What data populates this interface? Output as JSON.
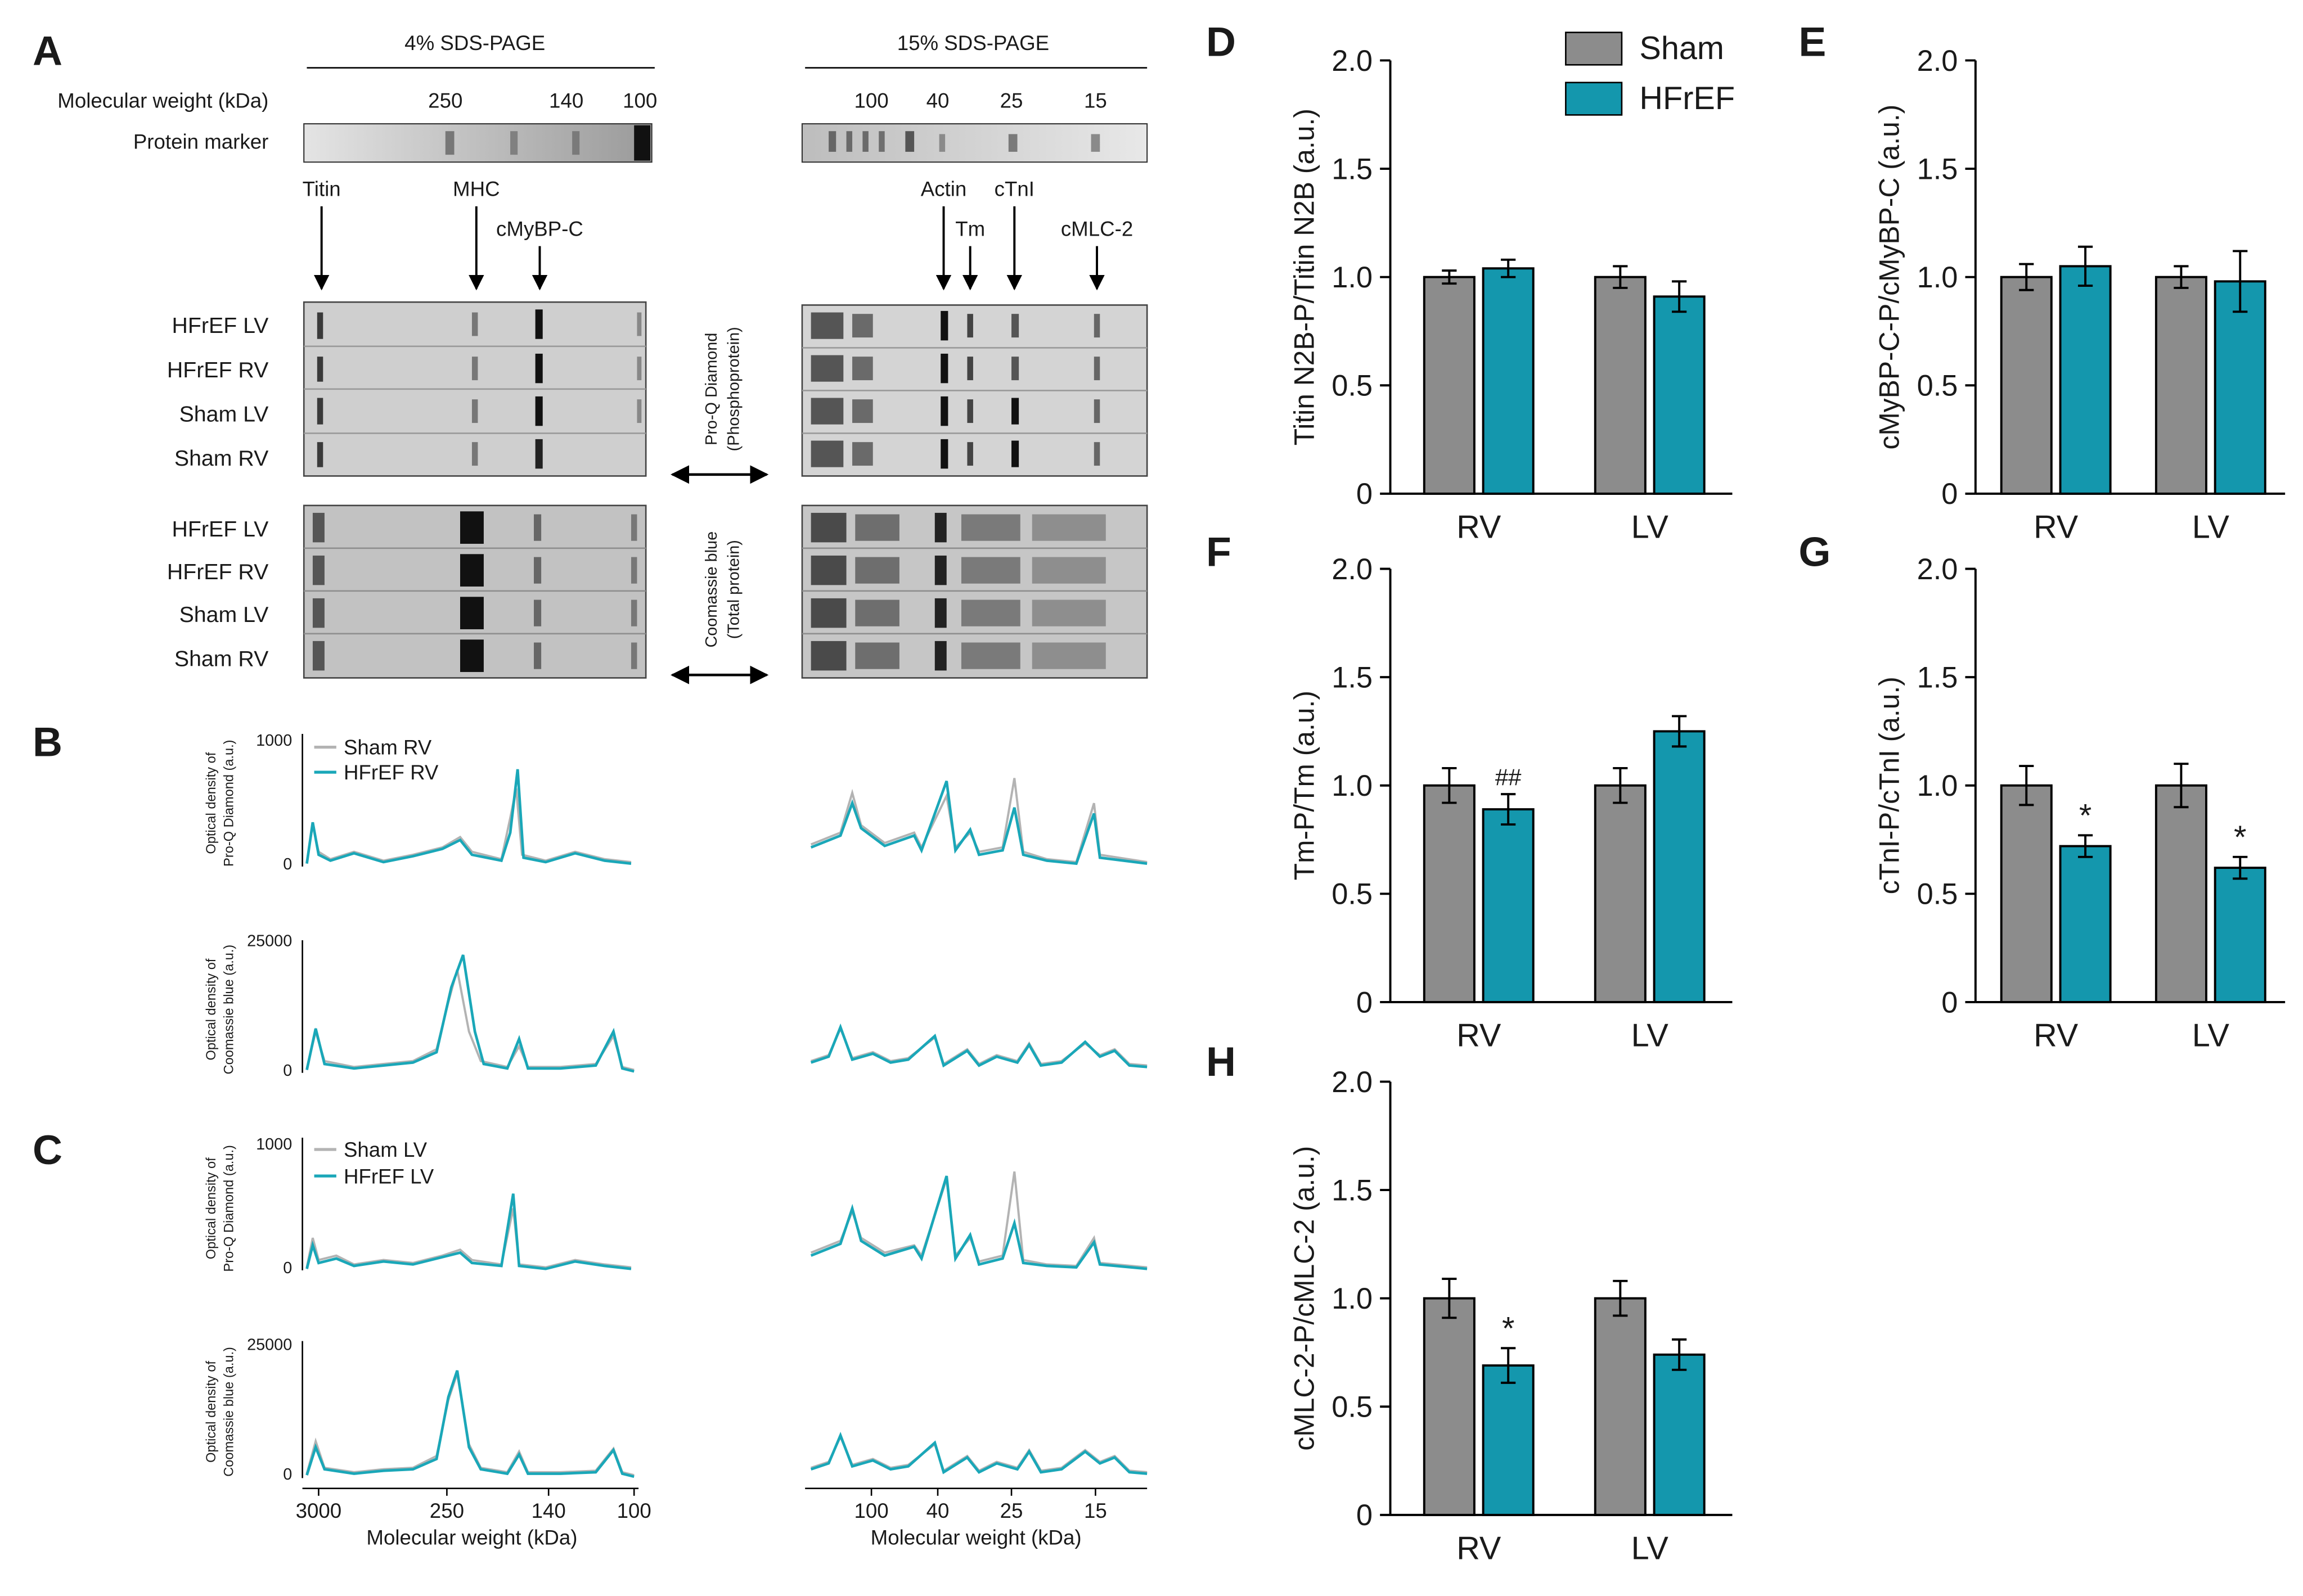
{
  "panel_labels": {
    "A": "A",
    "B": "B",
    "C": "C",
    "D": "D",
    "E": "E",
    "F": "F",
    "G": "G",
    "H": "H"
  },
  "colors": {
    "sham": "#8c8c8c",
    "hfref": "#1497ad",
    "trace_sham": "#b3b3b3",
    "trace_hfref": "#1aa7b8"
  },
  "legend": {
    "sham": "Sham",
    "hfref": "HFrEF"
  },
  "gel": {
    "title_4pct": "4% SDS-PAGE",
    "title_15pct": "15% SDS-PAGE",
    "mw_label": "Molecular weight (kDa)",
    "marker_label": "Protein marker",
    "mw_4pct": [
      "250",
      "140",
      "100"
    ],
    "mw_15pct": [
      "100",
      "40",
      "25",
      "15"
    ],
    "proteins_4pct": [
      "Titin",
      "MHC",
      "cMyBP-C"
    ],
    "proteins_15pct": [
      "Actin",
      "Tm",
      "cTnI",
      "cMLC-2"
    ],
    "lane_labels": [
      "HFrEF LV",
      "HFrEF RV",
      "Sham LV",
      "Sham RV"
    ],
    "stain_pro_q": "Pro-Q Diamond",
    "stain_pro_q_sub": "(Phosphoprotein)",
    "stain_coomassie": "Coomassie blue",
    "stain_coomassie_sub": "(Total protein)"
  },
  "traces": {
    "ylabel_proq_1": "Optical density of",
    "ylabel_proq_2": "Pro-Q Diamond (a.u.)",
    "ylabel_cb_1": "Optical density of",
    "ylabel_cb_2": "Coomassie blue (a.u.)",
    "proq_max": "1000",
    "cb_max": "25000",
    "zero": "0",
    "legend_B": [
      "Sham RV",
      "HFrEF RV"
    ],
    "legend_C": [
      "Sham LV",
      "HFrEF LV"
    ],
    "x_ticks_left": [
      "3000",
      "250",
      "140",
      "100"
    ],
    "x_ticks_right": [
      "100",
      "40",
      "25",
      "15"
    ],
    "xlabel": "Molecular weight (kDa)"
  },
  "chart_data": [
    {
      "panel": "D",
      "type": "bar",
      "ylabel": "Titin N2B-P/Titin N2B (a.u.)",
      "categories": [
        "RV",
        "LV"
      ],
      "ylim": [
        0,
        2.0
      ],
      "yticks": [
        "0",
        "0.5",
        "1.0",
        "1.5",
        "2.0"
      ],
      "series": [
        {
          "name": "Sham",
          "values": [
            1.0,
            1.0
          ],
          "errors": [
            0.03,
            0.05
          ],
          "marks": [
            "",
            ""
          ]
        },
        {
          "name": "HFrEF",
          "values": [
            1.04,
            0.91
          ],
          "errors": [
            0.04,
            0.07
          ],
          "marks": [
            "",
            ""
          ]
        }
      ]
    },
    {
      "panel": "E",
      "type": "bar",
      "ylabel": "cMyBP-C-P/cMyBP-C (a.u.)",
      "categories": [
        "RV",
        "LV"
      ],
      "ylim": [
        0,
        2.0
      ],
      "yticks": [
        "0",
        "0.5",
        "1.0",
        "1.5",
        "2.0"
      ],
      "series": [
        {
          "name": "Sham",
          "values": [
            1.0,
            1.0
          ],
          "errors": [
            0.06,
            0.05
          ],
          "marks": [
            "",
            ""
          ]
        },
        {
          "name": "HFrEF",
          "values": [
            1.05,
            0.98
          ],
          "errors": [
            0.09,
            0.14
          ],
          "marks": [
            "",
            ""
          ]
        }
      ]
    },
    {
      "panel": "F",
      "type": "bar",
      "ylabel": "Tm-P/Tm (a.u.)",
      "categories": [
        "RV",
        "LV"
      ],
      "ylim": [
        0,
        2.0
      ],
      "yticks": [
        "0",
        "0.5",
        "1.0",
        "1.5",
        "2.0"
      ],
      "series": [
        {
          "name": "Sham",
          "values": [
            1.0,
            1.0
          ],
          "errors": [
            0.08,
            0.08
          ],
          "marks": [
            "",
            ""
          ]
        },
        {
          "name": "HFrEF",
          "values": [
            0.89,
            1.25
          ],
          "errors": [
            0.07,
            0.07
          ],
          "marks": [
            "##",
            ""
          ]
        }
      ]
    },
    {
      "panel": "G",
      "type": "bar",
      "ylabel": "cTnI-P/cTnI (a.u.)",
      "categories": [
        "RV",
        "LV"
      ],
      "ylim": [
        0,
        2.0
      ],
      "yticks": [
        "0",
        "0.5",
        "1.0",
        "1.5",
        "2.0"
      ],
      "series": [
        {
          "name": "Sham",
          "values": [
            1.0,
            1.0
          ],
          "errors": [
            0.09,
            0.1
          ],
          "marks": [
            "",
            ""
          ]
        },
        {
          "name": "HFrEF",
          "values": [
            0.72,
            0.62
          ],
          "errors": [
            0.05,
            0.05
          ],
          "marks": [
            "*",
            "*"
          ]
        }
      ]
    },
    {
      "panel": "H",
      "type": "bar",
      "ylabel": "cMLC-2-P/cMLC-2 (a.u.)",
      "categories": [
        "RV",
        "LV"
      ],
      "ylim": [
        0,
        2.0
      ],
      "yticks": [
        "0",
        "0.5",
        "1.0",
        "1.5",
        "2.0"
      ],
      "series": [
        {
          "name": "Sham",
          "values": [
            1.0,
            1.0
          ],
          "errors": [
            0.09,
            0.08
          ],
          "marks": [
            "",
            ""
          ]
        },
        {
          "name": "HFrEF",
          "values": [
            0.69,
            0.74
          ],
          "errors": [
            0.08,
            0.07
          ],
          "marks": [
            "*",
            ""
          ]
        }
      ]
    }
  ]
}
